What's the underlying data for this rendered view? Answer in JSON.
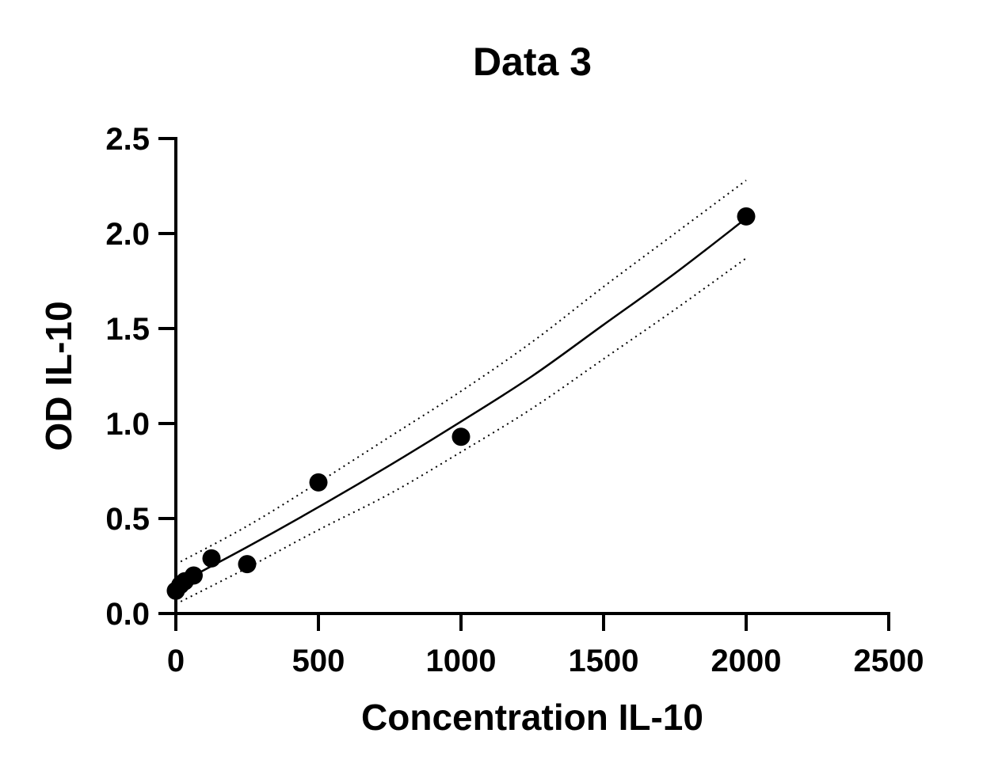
{
  "chart_data": {
    "type": "scatter",
    "title": "Data 3",
    "xlabel": "Concentration IL-10",
    "ylabel": "OD IL-10",
    "xlim": [
      0,
      2500
    ],
    "ylim": [
      0,
      2.5
    ],
    "x_ticks": [
      0,
      500,
      1000,
      1500,
      2000,
      2500
    ],
    "x_tick_labels": [
      "0",
      "500",
      "1000",
      "1500",
      "2000",
      "2500"
    ],
    "y_ticks": [
      0,
      0.5,
      1.0,
      1.5,
      2.0,
      2.5
    ],
    "y_tick_labels": [
      "0.0",
      "0.5",
      "1.0",
      "1.5",
      "2.0",
      "2.5"
    ],
    "grid": false,
    "series": [
      {
        "type": "scatter",
        "x": [
          0,
          15.6,
          31.25,
          62.5,
          125,
          250,
          500,
          1000,
          2000
        ],
        "y": [
          0.12,
          0.15,
          0.17,
          0.2,
          0.29,
          0.26,
          0.69,
          0.93,
          2.09
        ]
      },
      {
        "type": "line",
        "style": "solid",
        "x": [
          0,
          250,
          500,
          750,
          1000,
          1250,
          1500,
          1750,
          2000
        ],
        "y": [
          0.15,
          0.35,
          0.56,
          0.78,
          1.01,
          1.25,
          1.52,
          1.79,
          2.08
        ]
      },
      {
        "type": "line",
        "style": "dotted",
        "x": [
          0,
          250,
          500,
          750,
          1000,
          1250,
          1500,
          1750,
          2000
        ],
        "y": [
          0.26,
          0.46,
          0.69,
          0.93,
          1.17,
          1.43,
          1.72,
          2.0,
          2.28
        ]
      },
      {
        "type": "line",
        "style": "dotted",
        "x": [
          0,
          250,
          500,
          750,
          1000,
          1250,
          1500,
          1750,
          2000
        ],
        "y": [
          0.05,
          0.24,
          0.44,
          0.63,
          0.85,
          1.08,
          1.34,
          1.6,
          1.87
        ]
      }
    ]
  }
}
